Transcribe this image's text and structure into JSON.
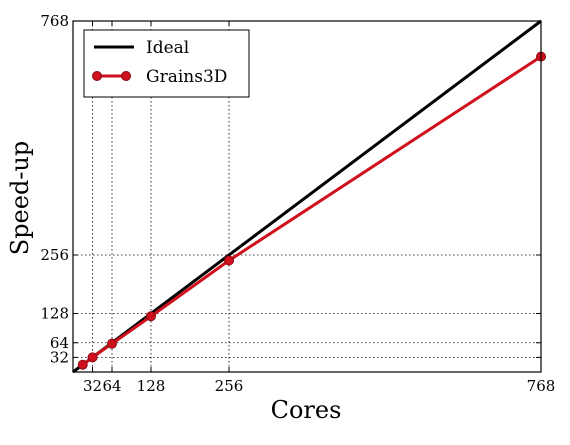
{
  "chart_data": {
    "type": "line",
    "title": "",
    "xlabel": "Cores",
    "ylabel": "Speed-up",
    "xlim": [
      0,
      768
    ],
    "ylim": [
      0,
      768
    ],
    "x_ticks": [
      32,
      64,
      128,
      256,
      768
    ],
    "y_ticks": [
      32,
      64,
      128,
      256,
      768
    ],
    "grid": true,
    "grid_style": "dotted",
    "legend_position": "top-left",
    "series": [
      {
        "name": "Ideal",
        "color": "#000000",
        "marker": "none",
        "x": [
          0,
          768
        ],
        "y": [
          0,
          768
        ]
      },
      {
        "name": "Grains3D",
        "color": "#d0101c",
        "marker": "circle",
        "x": [
          16,
          32,
          64,
          128,
          256,
          768
        ],
        "y": [
          16,
          32,
          62,
          122,
          244,
          690
        ]
      }
    ]
  }
}
